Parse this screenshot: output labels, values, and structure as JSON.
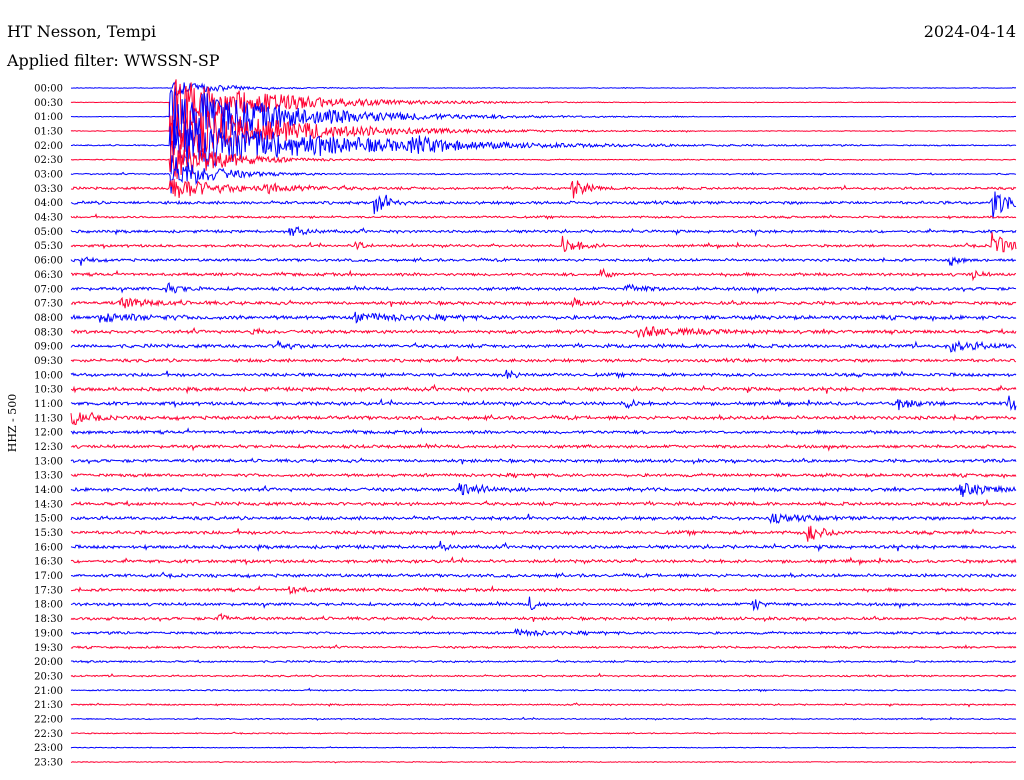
{
  "chart_data": {
    "type": "line",
    "title": "HT Nesson, Tempi",
    "subtitle": "Applied filter: WWSSN-SP",
    "date": "2024-04-14",
    "ylabel": "HHZ - 500",
    "colors": {
      "even": "#0000ff",
      "odd": "#ff0033"
    },
    "tick_labels": [
      "00:00",
      "00:30",
      "01:00",
      "01:30",
      "02:00",
      "02:30",
      "03:00",
      "03:30",
      "04:00",
      "04:30",
      "05:00",
      "05:30",
      "06:00",
      "06:30",
      "07:00",
      "07:30",
      "08:00",
      "08:30",
      "09:00",
      "09:30",
      "10:00",
      "10:30",
      "11:00",
      "11:30",
      "12:00",
      "12:30",
      "13:00",
      "13:30",
      "14:00",
      "14:30",
      "15:00",
      "15:30",
      "16:00",
      "16:30",
      "17:00",
      "17:30",
      "18:00",
      "18:30",
      "19:00",
      "19:30",
      "20:00",
      "20:30",
      "21:00",
      "21:30",
      "22:00",
      "22:30",
      "23:00",
      "23:30"
    ],
    "noise": [
      0.3,
      0.3,
      0.3,
      0.4,
      0.6,
      0.5,
      0.7,
      1.2,
      1.4,
      1.0,
      1.3,
      1.2,
      1.3,
      1.4,
      1.5,
      1.6,
      1.8,
      1.6,
      1.7,
      1.5,
      1.6,
      1.7,
      1.6,
      1.7,
      1.5,
      1.5,
      1.5,
      1.5,
      1.6,
      1.6,
      1.6,
      1.6,
      1.6,
      1.5,
      1.5,
      1.4,
      1.4,
      1.4,
      1.2,
      1.0,
      0.9,
      0.8,
      0.7,
      0.7,
      0.6,
      0.5,
      0.4,
      0.4
    ],
    "events": [
      {
        "row": 0,
        "t": 0.106,
        "amp": 8,
        "dur": 0.06
      },
      {
        "row": 1,
        "t": 0.104,
        "amp": 28,
        "dur": 0.12
      },
      {
        "row": 2,
        "t": 0.104,
        "amp": 34,
        "dur": 0.14
      },
      {
        "row": 3,
        "t": 0.104,
        "amp": 30,
        "dur": 0.14
      },
      {
        "row": 4,
        "t": 0.104,
        "amp": 30,
        "dur": 0.18
      },
      {
        "row": 4,
        "t": 0.36,
        "amp": 9,
        "dur": 0.03
      },
      {
        "row": 5,
        "t": 0.104,
        "amp": 26,
        "dur": 0.06
      },
      {
        "row": 6,
        "t": 0.104,
        "amp": 20,
        "dur": 0.05
      },
      {
        "row": 7,
        "t": 0.104,
        "amp": 14,
        "dur": 0.05
      },
      {
        "row": 7,
        "t": 0.529,
        "amp": 14,
        "dur": 0.015
      },
      {
        "row": 7,
        "t": 0.2,
        "amp": 4,
        "dur": 0.06
      },
      {
        "row": 8,
        "t": 0.32,
        "amp": 14,
        "dur": 0.015
      },
      {
        "row": 8,
        "t": 0.973,
        "amp": 18,
        "dur": 0.02
      },
      {
        "row": 10,
        "t": 0.23,
        "amp": 6,
        "dur": 0.02
      },
      {
        "row": 11,
        "t": 0.519,
        "amp": 10,
        "dur": 0.02
      },
      {
        "row": 11,
        "t": 0.974,
        "amp": 14,
        "dur": 0.02
      },
      {
        "row": 11,
        "t": 0.3,
        "amp": 6,
        "dur": 0.01
      },
      {
        "row": 12,
        "t": 0.01,
        "amp": 6,
        "dur": 0.01
      },
      {
        "row": 12,
        "t": 0.93,
        "amp": 6,
        "dur": 0.01
      },
      {
        "row": 13,
        "t": 0.56,
        "amp": 6,
        "dur": 0.01
      },
      {
        "row": 13,
        "t": 0.952,
        "amp": 6,
        "dur": 0.01
      },
      {
        "row": 14,
        "t": 0.1,
        "amp": 5,
        "dur": 0.02
      },
      {
        "row": 14,
        "t": 0.585,
        "amp": 5,
        "dur": 0.02
      },
      {
        "row": 15,
        "t": 0.05,
        "amp": 5,
        "dur": 0.04
      },
      {
        "row": 15,
        "t": 0.53,
        "amp": 5,
        "dur": 0.01
      },
      {
        "row": 16,
        "t": 0.03,
        "amp": 5,
        "dur": 0.05
      },
      {
        "row": 16,
        "t": 0.3,
        "amp": 4,
        "dur": 0.06
      },
      {
        "row": 17,
        "t": 0.19,
        "amp": 5,
        "dur": 0.01
      },
      {
        "row": 17,
        "t": 0.6,
        "amp": 5,
        "dur": 0.06
      },
      {
        "row": 18,
        "t": 0.219,
        "amp": 9,
        "dur": 0.01
      },
      {
        "row": 18,
        "t": 0.93,
        "amp": 5,
        "dur": 0.04
      },
      {
        "row": 20,
        "t": 0.46,
        "amp": 7,
        "dur": 0.01
      },
      {
        "row": 22,
        "t": 0.586,
        "amp": 6,
        "dur": 0.01
      },
      {
        "row": 22,
        "t": 0.874,
        "amp": 6,
        "dur": 0.02
      },
      {
        "row": 22,
        "t": 0.99,
        "amp": 12,
        "dur": 0.02
      },
      {
        "row": 23,
        "t": 0.0,
        "amp": 7,
        "dur": 0.02
      },
      {
        "row": 28,
        "t": 0.41,
        "amp": 8,
        "dur": 0.03
      },
      {
        "row": 28,
        "t": 0.94,
        "amp": 6,
        "dur": 0.04
      },
      {
        "row": 30,
        "t": 0.74,
        "amp": 4,
        "dur": 0.04
      },
      {
        "row": 31,
        "t": 0.778,
        "amp": 10,
        "dur": 0.02
      },
      {
        "row": 32,
        "t": 0.39,
        "amp": 5,
        "dur": 0.01
      },
      {
        "row": 35,
        "t": 0.23,
        "amp": 4,
        "dur": 0.02
      },
      {
        "row": 36,
        "t": 0.485,
        "amp": 7,
        "dur": 0.01
      },
      {
        "row": 36,
        "t": 0.721,
        "amp": 8,
        "dur": 0.01
      },
      {
        "row": 37,
        "t": 0.155,
        "amp": 6,
        "dur": 0.01
      },
      {
        "row": 38,
        "t": 0.47,
        "amp": 3,
        "dur": 0.04
      }
    ]
  }
}
